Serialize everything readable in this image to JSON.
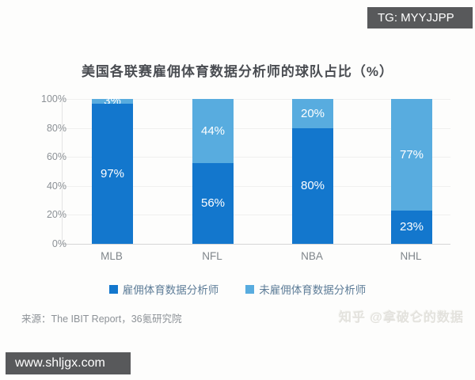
{
  "badges": {
    "top_right": "TG: MYYJJPP",
    "bottom_left": "www.shljgx.com"
  },
  "chart": {
    "title": "美国各联赛雇佣体育数据分析师的球队占比（%）",
    "source": "来源：The IBIT Report，36氪研究院"
  },
  "watermark": {
    "text": "知乎 @拿破仑的数据"
  },
  "colors": {
    "employed": "#1377cd",
    "not_employed": "#58acdf",
    "badge_bg": "#58595b"
  },
  "chart_data": {
    "type": "bar",
    "stacked": true,
    "title": "美国各联赛雇佣体育数据分析师的球队占比（%）",
    "categories": [
      "MLB",
      "NFL",
      "NBA",
      "NHL"
    ],
    "series": [
      {
        "name": "雇佣体育数据分析师",
        "color": "#1377cd",
        "values": [
          97,
          56,
          80,
          23
        ]
      },
      {
        "name": "未雇佣体育数据分析师",
        "color": "#58acdf",
        "values": [
          3,
          44,
          20,
          77
        ]
      }
    ],
    "xlabel": "",
    "ylabel": "",
    "ylim": [
      0,
      100
    ],
    "yticks": [
      0,
      20,
      40,
      60,
      80,
      100
    ],
    "ytick_labels": [
      "0%",
      "20%",
      "40%",
      "60%",
      "80%",
      "100%"
    ],
    "grid": "faint-horizontal",
    "legend_position": "bottom",
    "data_label_suffix": "%",
    "source": "来源：The IBIT Report，36氪研究院"
  }
}
